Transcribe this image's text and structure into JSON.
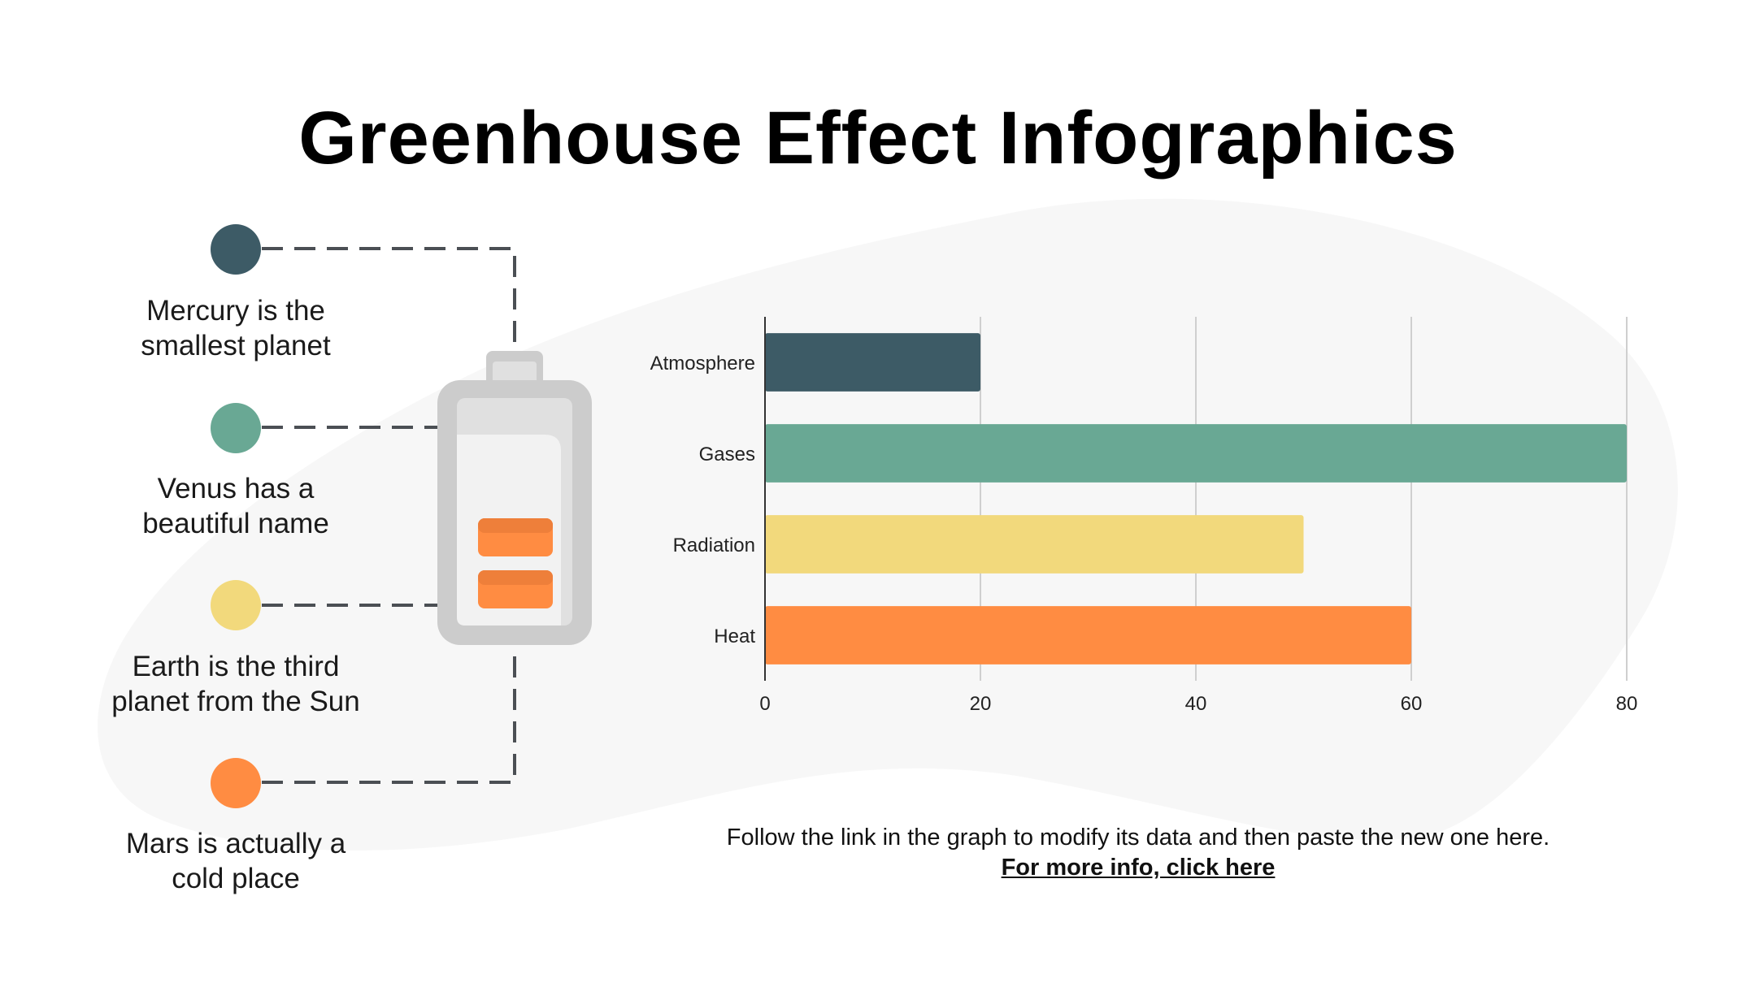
{
  "title": "Greenhouse Effect Infographics",
  "colors": {
    "dark": "#3d5b66",
    "green": "#69a894",
    "yellow": "#f2d97c",
    "orange": "#ff8c42",
    "connector": "#4b4f54",
    "blob": "#f7f7f7",
    "battery_body": "#cccccc",
    "battery_inner": "#e0e0e0",
    "battery_shine": "#f2f2f2",
    "gridline": "#cfcfcf"
  },
  "planets": [
    {
      "label": "Mercury is the smallest planet",
      "color": "#3d5b66"
    },
    {
      "label": "Venus has a beautiful name",
      "color": "#69a894"
    },
    {
      "label": "Earth is the third planet from the Sun",
      "color": "#f2d97c"
    },
    {
      "label": "Mars is actually a cold place",
      "color": "#ff8c42"
    }
  ],
  "battery": {
    "icon": "battery-icon"
  },
  "chart_data": {
    "type": "bar",
    "orientation": "horizontal",
    "categories": [
      "Atmosphere",
      "Gases",
      "Radiation",
      "Heat"
    ],
    "values": [
      20,
      80,
      50,
      60
    ],
    "colors": [
      "#3d5b66",
      "#69a894",
      "#f2d97c",
      "#ff8c42"
    ],
    "xlim": [
      0,
      80
    ],
    "xticks": [
      0,
      20,
      40,
      60,
      80
    ],
    "grid": true,
    "legend": false
  },
  "footer": {
    "note": "Follow the link in the graph to modify its data and then paste the new one here.",
    "link": "For more info, click here"
  }
}
